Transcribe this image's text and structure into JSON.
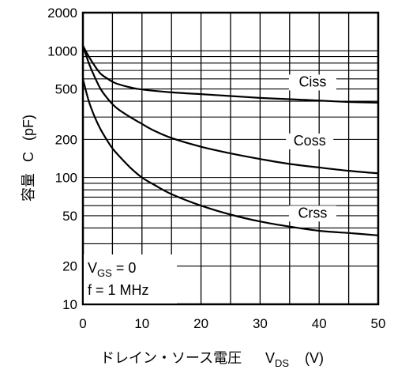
{
  "chart_data": {
    "type": "line",
    "xlabel_main": "ドレイン・ソース電圧",
    "xlabel_var": "V",
    "xlabel_sub": "DS",
    "xlabel_unit": "(V)",
    "ylabel_main": "容量",
    "ylabel_var": "C",
    "ylabel_unit": "(pF)",
    "x_scale": "linear",
    "y_scale": "log",
    "xlim": [
      0,
      50
    ],
    "ylim": [
      10,
      2000
    ],
    "x_ticks": [
      0,
      10,
      20,
      30,
      40,
      50
    ],
    "y_ticks": [
      10,
      20,
      50,
      100,
      200,
      500,
      1000,
      2000
    ],
    "grid": true,
    "series": [
      {
        "name": "Ciss",
        "x": [
          0,
          1,
          2,
          3,
          4,
          5,
          6,
          8,
          10,
          15,
          20,
          25,
          30,
          35,
          40,
          45,
          50
        ],
        "y": [
          1100,
          900,
          760,
          660,
          610,
          570,
          545,
          515,
          495,
          470,
          455,
          440,
          425,
          415,
          405,
          395,
          390
        ]
      },
      {
        "name": "Coss",
        "x": [
          0,
          1,
          2,
          3,
          4,
          5,
          6,
          8,
          10,
          12,
          15,
          20,
          25,
          30,
          35,
          40,
          45,
          50
        ],
        "y": [
          1100,
          800,
          620,
          500,
          430,
          380,
          345,
          300,
          265,
          235,
          205,
          175,
          155,
          140,
          128,
          120,
          113,
          108
        ]
      },
      {
        "name": "Crss",
        "x": [
          0,
          1,
          2,
          3,
          4,
          5,
          6,
          8,
          10,
          12,
          15,
          20,
          25,
          30,
          35,
          40,
          45,
          50
        ],
        "y": [
          600,
          400,
          300,
          240,
          200,
          170,
          150,
          120,
          100,
          88,
          74,
          60,
          51,
          45,
          41,
          38,
          36.5,
          35
        ]
      }
    ],
    "annotations": {
      "vgs_var": "V",
      "vgs_sub": "GS",
      "vgs_rest": " = 0",
      "freq": "f = 1 MHz"
    }
  }
}
